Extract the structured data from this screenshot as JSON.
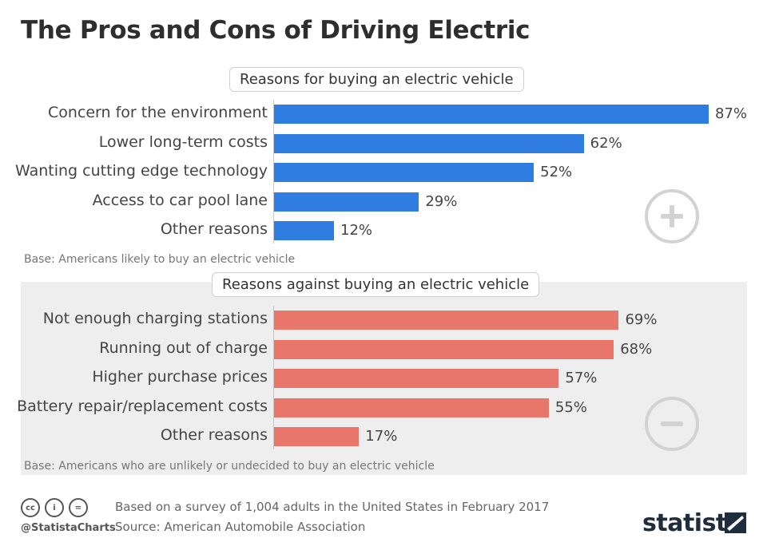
{
  "title": "The Pros and Cons of Driving Electric",
  "chart_data": [
    {
      "type": "bar",
      "orientation": "horizontal",
      "title": "Reasons for buying an electric vehicle",
      "categories": [
        "Concern for the environment",
        "Lower long-term costs",
        "Wanting cutting edge technology",
        "Access to car pool lane",
        "Other reasons"
      ],
      "values": [
        87,
        62,
        52,
        29,
        12
      ],
      "value_labels": [
        "87%",
        "62%",
        "52%",
        "29%",
        "12%"
      ],
      "unit": "%",
      "xlim": [
        0,
        100
      ],
      "color": "#2f7de1",
      "note": "Base: Americans likely to buy an electric vehicle",
      "icon": "plus-circle-icon"
    },
    {
      "type": "bar",
      "orientation": "horizontal",
      "title": "Reasons against buying an electric vehicle",
      "categories": [
        "Not enough charging stations",
        "Running out of charge",
        "Higher purchase prices",
        "Battery repair/replacement costs",
        "Other reasons"
      ],
      "values": [
        69,
        68,
        57,
        55,
        17
      ],
      "value_labels": [
        "69%",
        "68%",
        "57%",
        "55%",
        "17%"
      ],
      "unit": "%",
      "xlim": [
        0,
        100
      ],
      "color": "#e8766a",
      "note": "Base: Americans who are unlikely or undecided to buy an electric vehicle",
      "icon": "minus-circle-icon"
    }
  ],
  "footer": {
    "license_icons": [
      "cc",
      "by",
      "nd"
    ],
    "license_glyphs": [
      "cc",
      "i",
      "="
    ],
    "handle": "@StatistaCharts",
    "survey_note": "Based on a survey of 1,004 adults in the United States in February 2017",
    "source": "Source: American Automobile Association",
    "brand": "statista"
  }
}
